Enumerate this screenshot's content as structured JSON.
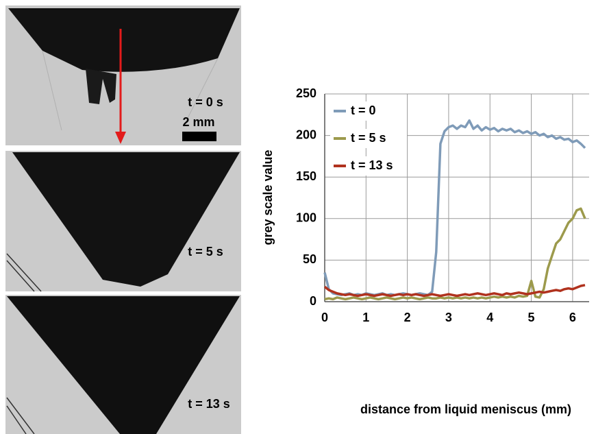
{
  "panels": [
    {
      "label": "t = 0 s",
      "scale_bar": "2 mm"
    },
    {
      "label": "t = 5 s"
    },
    {
      "label": "t = 13 s"
    }
  ],
  "chart_data": {
    "type": "line",
    "x": [
      0,
      0.1,
      0.2,
      0.3,
      0.4,
      0.5,
      0.6,
      0.7,
      0.8,
      0.9,
      1,
      1.1,
      1.2,
      1.3,
      1.4,
      1.5,
      1.6,
      1.7,
      1.8,
      1.9,
      2,
      2.1,
      2.2,
      2.3,
      2.4,
      2.5,
      2.6,
      2.7,
      2.8,
      2.9,
      3,
      3.1,
      3.2,
      3.3,
      3.4,
      3.5,
      3.6,
      3.7,
      3.8,
      3.9,
      4,
      4.1,
      4.2,
      4.3,
      4.4,
      4.5,
      4.6,
      4.7,
      4.8,
      4.9,
      5,
      5.1,
      5.2,
      5.3,
      5.4,
      5.5,
      5.6,
      5.7,
      5.8,
      5.9,
      6,
      6.1,
      6.2,
      6.3
    ],
    "series": [
      {
        "name": "t = 0",
        "color": "#7f9bb8",
        "values": [
          35,
          15,
          10,
          9,
          8,
          9,
          10,
          8,
          9,
          8,
          10,
          9,
          8,
          9,
          10,
          8,
          9,
          8,
          9,
          10,
          9,
          8,
          9,
          10,
          9,
          8,
          12,
          60,
          190,
          205,
          210,
          212,
          208,
          212,
          210,
          218,
          208,
          212,
          206,
          210,
          207,
          209,
          205,
          208,
          206,
          208,
          204,
          206,
          203,
          205,
          202,
          204,
          200,
          202,
          198,
          200,
          196,
          198,
          195,
          196,
          192,
          194,
          190,
          185
        ]
      },
      {
        "name": "t = 5 s",
        "color": "#9c9a4c",
        "values": [
          3,
          4,
          3,
          5,
          4,
          3,
          4,
          5,
          4,
          3,
          4,
          5,
          4,
          3,
          4,
          5,
          4,
          3,
          4,
          5,
          4,
          5,
          4,
          3,
          4,
          5,
          4,
          4,
          5,
          4,
          5,
          4,
          5,
          4,
          5,
          4,
          5,
          4,
          5,
          4,
          5,
          6,
          5,
          6,
          5,
          6,
          5,
          7,
          6,
          7,
          25,
          6,
          5,
          15,
          40,
          55,
          70,
          75,
          85,
          95,
          100,
          110,
          112,
          100
        ]
      },
      {
        "name": "t = 13 s",
        "color": "#b0321e",
        "values": [
          18,
          14,
          12,
          10,
          9,
          8,
          9,
          8,
          7,
          8,
          9,
          8,
          7,
          8,
          9,
          8,
          7,
          8,
          9,
          8,
          9,
          8,
          9,
          8,
          7,
          8,
          9,
          8,
          7,
          8,
          9,
          8,
          7,
          8,
          9,
          8,
          9,
          10,
          9,
          8,
          9,
          10,
          9,
          8,
          10,
          9,
          10,
          11,
          10,
          9,
          10,
          11,
          12,
          11,
          12,
          13,
          14,
          13,
          15,
          16,
          15,
          17,
          19,
          20
        ]
      }
    ],
    "x_label": "distance from liquid meniscus (mm)",
    "y_label": "grey scale value",
    "xlim": [
      0,
      6.4
    ],
    "ylim": [
      0,
      250
    ],
    "xticks": [
      0,
      1,
      2,
      3,
      4,
      5,
      6
    ],
    "yticks": [
      0,
      50,
      100,
      150,
      200,
      250
    ],
    "grid": true
  }
}
